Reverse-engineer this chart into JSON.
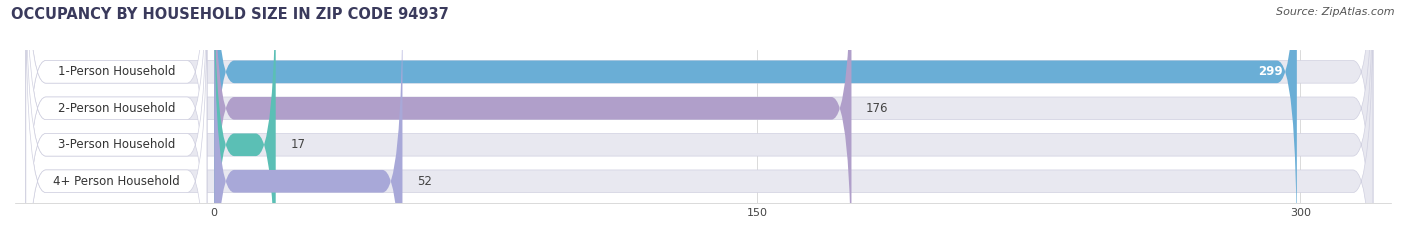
{
  "title": "OCCUPANCY BY HOUSEHOLD SIZE IN ZIP CODE 94937",
  "source": "Source: ZipAtlas.com",
  "categories": [
    "1-Person Household",
    "2-Person Household",
    "3-Person Household",
    "4+ Person Household"
  ],
  "values": [
    299,
    176,
    17,
    52
  ],
  "bar_colors": [
    "#6aaed6",
    "#b09fca",
    "#5bbfb5",
    "#a8a8d8"
  ],
  "bar_bg_color": "#e8e8f0",
  "xlim": [
    0,
    320
  ],
  "xticks": [
    0,
    150,
    300
  ],
  "title_fontsize": 10.5,
  "source_fontsize": 8,
  "label_fontsize": 8.5,
  "value_fontsize": 8.5,
  "figsize": [
    14.06,
    2.33
  ],
  "dpi": 100
}
